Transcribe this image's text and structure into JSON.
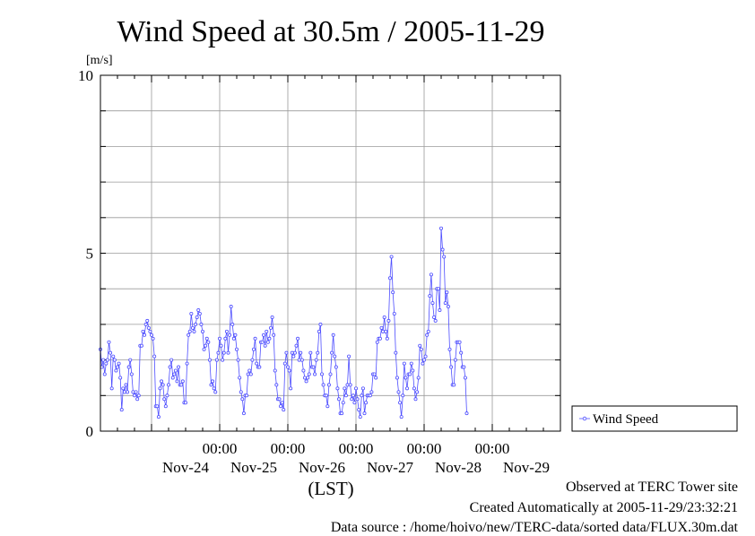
{
  "chart_data": {
    "type": "line",
    "title": "Wind Speed at 30.5m / 2005-11-29",
    "ylabel": "[m/s]",
    "xlabel": "(LST)",
    "ylim": [
      0,
      10
    ],
    "yticks": [
      0,
      5,
      10
    ],
    "x_start_label": "2005-11-23 06:00",
    "x_end_label": "2005-11-30 00:00",
    "x_tick_time_labels": [
      "00:00",
      "00:00",
      "00:00",
      "00:00",
      "00:00"
    ],
    "x_day_labels": [
      "Nov-24",
      "Nov-25",
      "Nov-26",
      "Nov-27",
      "Nov-28",
      "Nov-29"
    ],
    "grid": true,
    "legend_position": "right",
    "series": [
      {
        "name": "Wind Speed",
        "color": "#4d4dff",
        "sample_interval_hours": 0.5,
        "values": [
          2.3,
          1.8,
          2.0,
          1.6,
          1.9,
          2.0,
          2.5,
          2.2,
          1.2,
          2.1,
          2.0,
          1.7,
          1.8,
          1.9,
          1.5,
          0.6,
          1.2,
          1.1,
          1.3,
          1.1,
          1.8,
          2.0,
          1.6,
          1.1,
          1.0,
          1.1,
          0.9,
          1.0,
          2.4,
          2.4,
          2.8,
          2.7,
          3.0,
          3.1,
          2.9,
          2.8,
          2.7,
          2.6,
          2.1,
          0.7,
          0.7,
          0.4,
          1.2,
          1.4,
          1.3,
          0.9,
          0.7,
          1.0,
          1.3,
          1.8,
          2.0,
          1.5,
          1.6,
          1.7,
          1.4,
          1.8,
          1.3,
          1.3,
          1.4,
          0.8,
          0.8,
          1.9,
          2.7,
          2.8,
          3.3,
          2.9,
          2.8,
          3.0,
          3.2,
          3.4,
          3.3,
          3.0,
          2.8,
          2.3,
          2.4,
          2.6,
          2.5,
          2.0,
          1.3,
          1.4,
          1.2,
          1.1,
          2.0,
          2.2,
          2.6,
          2.4,
          2.0,
          2.2,
          2.6,
          2.8,
          2.2,
          2.7,
          3.5,
          3.0,
          2.6,
          2.7,
          2.3,
          2.0,
          1.5,
          1.1,
          0.9,
          0.5,
          1.0,
          1.0,
          1.6,
          1.7,
          1.6,
          2.0,
          2.3,
          2.6,
          1.9,
          1.8,
          1.8,
          2.5,
          2.5,
          2.7,
          2.4,
          2.8,
          2.5,
          2.6,
          2.9,
          3.2,
          2.7,
          1.7,
          1.3,
          0.9,
          0.9,
          0.7,
          0.8,
          0.6,
          1.9,
          2.2,
          1.8,
          1.7,
          1.2,
          2.2,
          2.1,
          2.2,
          2.4,
          2.6,
          2.0,
          2.2,
          2.0,
          1.7,
          1.5,
          1.4,
          1.5,
          1.6,
          2.2,
          1.8,
          1.8,
          1.6,
          2.0,
          2.2,
          2.8,
          3.0,
          1.6,
          1.3,
          1.0,
          1.0,
          0.7,
          1.3,
          1.6,
          2.2,
          2.7,
          2.1,
          1.8,
          1.2,
          0.9,
          0.5,
          0.5,
          0.8,
          1.2,
          1.0,
          1.3,
          2.1,
          1.3,
          0.9,
          1.0,
          0.8,
          1.2,
          0.9,
          0.6,
          0.4,
          1.0,
          1.2,
          0.5,
          0.8,
          1.0,
          1.0,
          1.0,
          1.1,
          1.6,
          1.6,
          1.5,
          2.5,
          2.6,
          2.6,
          2.9,
          2.8,
          3.2,
          2.8,
          2.6,
          3.1,
          4.3,
          4.9,
          3.9,
          3.3,
          2.2,
          1.5,
          1.1,
          0.8,
          0.4,
          1.0,
          1.9,
          1.5,
          1.2,
          1.6,
          1.6,
          1.9,
          1.7,
          1.2,
          0.9,
          1.1,
          1.5,
          2.4,
          2.3,
          1.9,
          2.0,
          2.1,
          2.7,
          2.8,
          3.8,
          4.4,
          3.6,
          3.2,
          3.1,
          4.0,
          4.0,
          3.4,
          5.7,
          5.1,
          4.9,
          3.6,
          3.9,
          3.5,
          2.3,
          1.8,
          1.3,
          1.3,
          2.0,
          2.5,
          2.5,
          2.5,
          2.2,
          1.8,
          1.8,
          1.5,
          0.5
        ]
      }
    ]
  },
  "footer": {
    "site": "Observed at TERC Tower site",
    "created": "Created Automatically at 2005-11-29/23:32:21",
    "source": "Data source : /home/hoivo/new/TERC-data/sorted  data/FLUX.30m.dat"
  }
}
